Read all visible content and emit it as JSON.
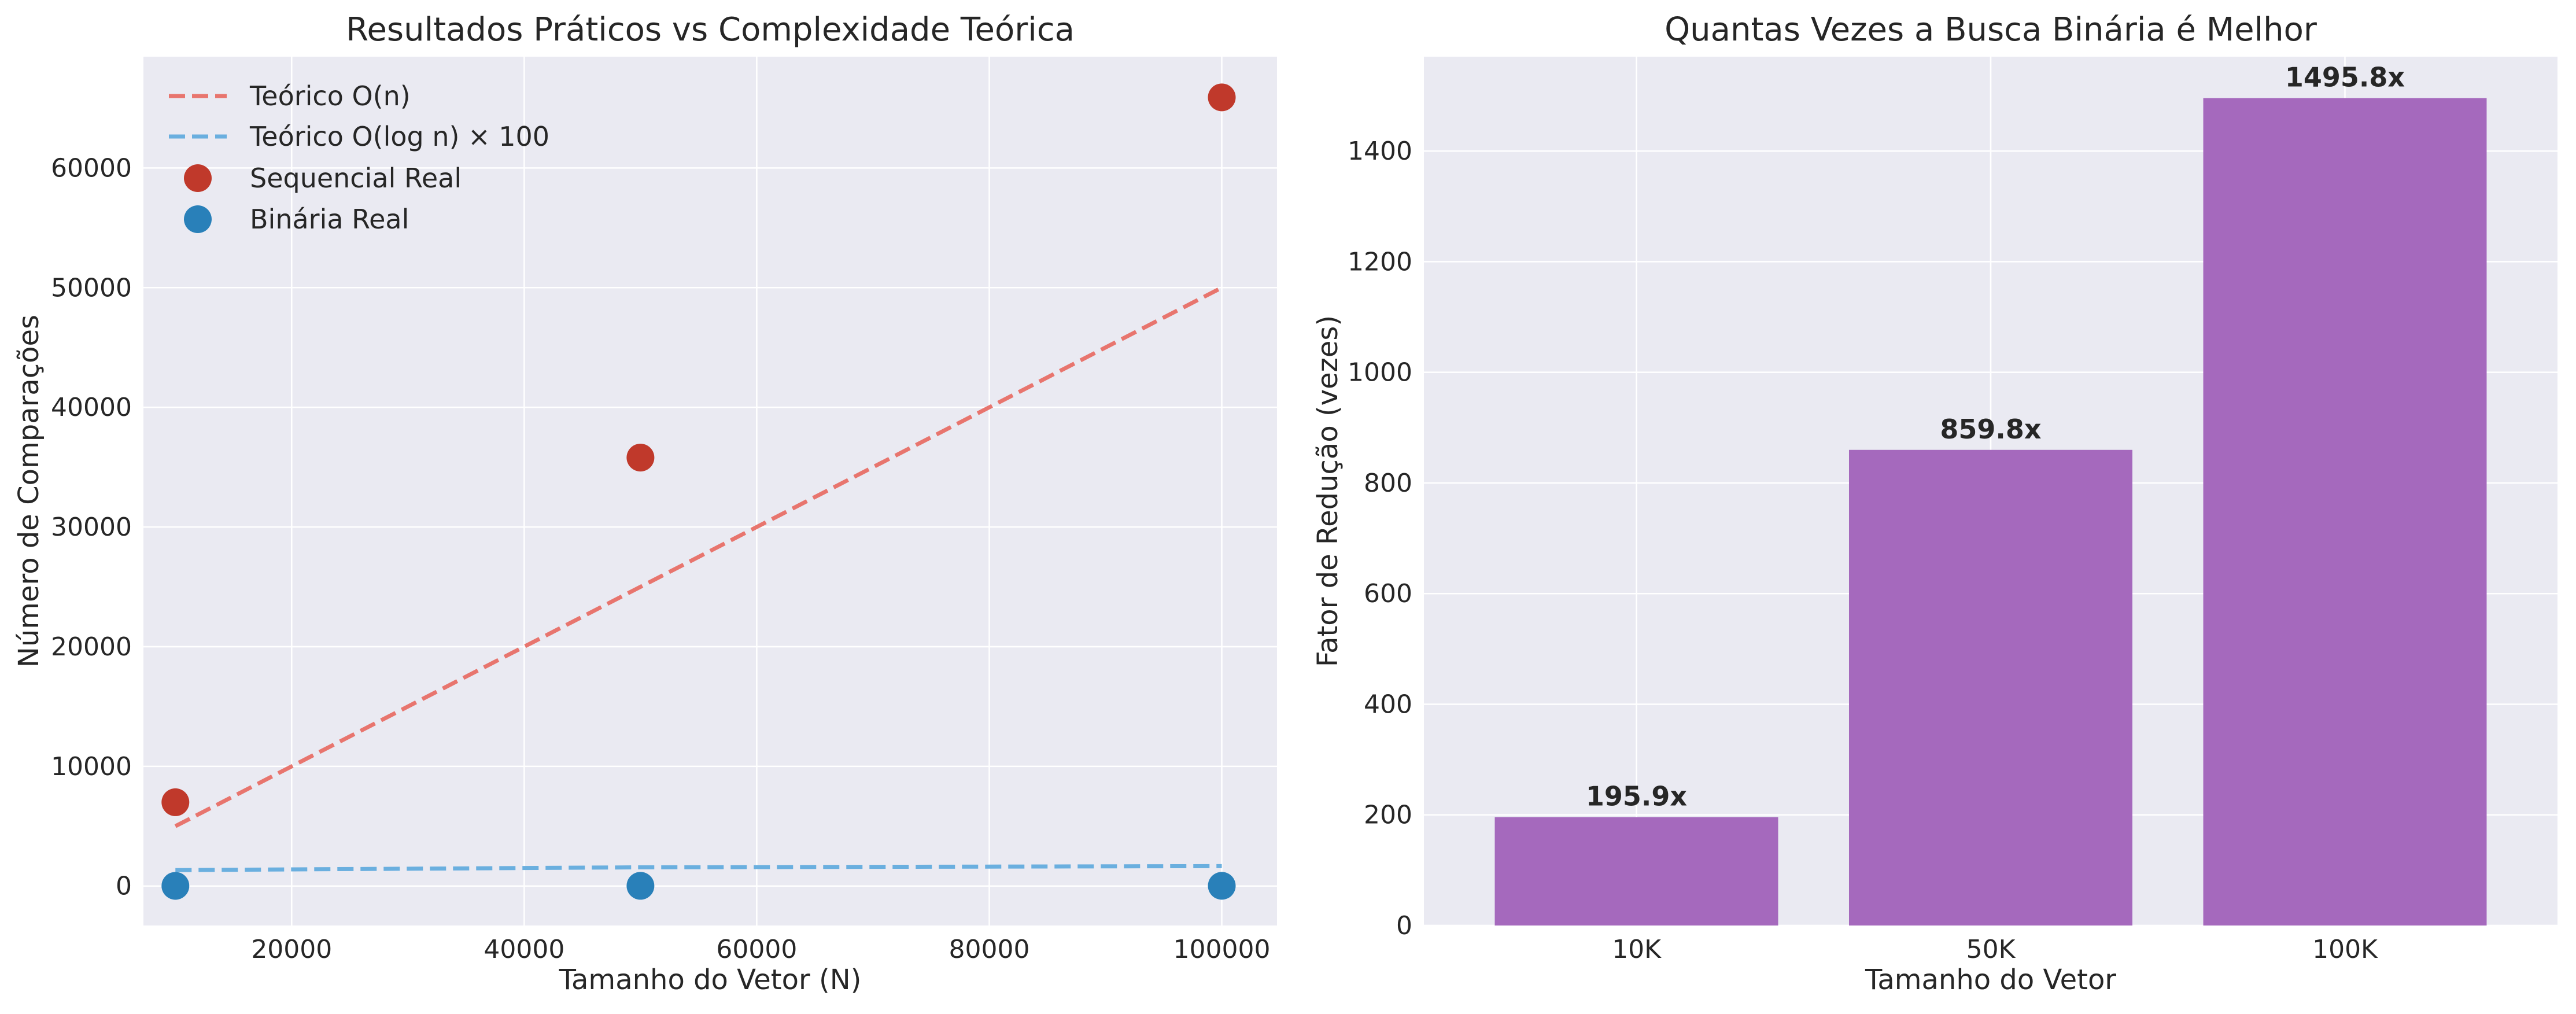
{
  "chart_data": [
    {
      "type": "scatter",
      "title": "Resultados Práticos vs Complexidade Teórica",
      "xlabel": "Tamanho do Vetor (N)",
      "ylabel": "Número de Comparações",
      "xlim": [
        7250,
        104750
      ],
      "ylim": [
        -3300,
        69300
      ],
      "xticks": [
        20000,
        40000,
        60000,
        80000,
        100000
      ],
      "yticks": [
        0,
        10000,
        20000,
        30000,
        40000,
        50000,
        60000
      ],
      "grid": true,
      "legend_position": "upper-left",
      "series": [
        {
          "name": "Teórico O(n)",
          "kind": "dashed-line",
          "color": "#e8756e",
          "x": [
            10000,
            50000,
            100000
          ],
          "y": [
            5000,
            25000,
            50000
          ]
        },
        {
          "name": "Teórico O(log n) × 100",
          "kind": "dashed-line",
          "color": "#6aafdf",
          "x": [
            10000,
            50000,
            100000
          ],
          "y": [
            1329,
            1561,
            1661
          ]
        },
        {
          "name": "Sequencial Real",
          "kind": "points",
          "color": "#c0392b",
          "x": [
            10000,
            50000,
            100000
          ],
          "y": [
            7000,
            35800,
            65900
          ]
        },
        {
          "name": "Binária Real",
          "kind": "points",
          "color": "#2980b9",
          "x": [
            10000,
            50000,
            100000
          ],
          "y": [
            14,
            16,
            17
          ]
        }
      ]
    },
    {
      "type": "bar",
      "title": "Quantas Vezes a Busca Binária é Melhor",
      "xlabel": "Tamanho do Vetor",
      "ylabel": "Fator de Redução (vezes)",
      "categories": [
        "10K",
        "50K",
        "100K"
      ],
      "values": [
        195.9,
        859.8,
        1495.8
      ],
      "value_labels": [
        "195.9x",
        "859.8x",
        "1495.8x"
      ],
      "ylim": [
        0,
        1570.6
      ],
      "yticks": [
        0,
        200,
        400,
        600,
        800,
        1000,
        1200,
        1400
      ],
      "bar_color": "#a569bd",
      "grid": true
    }
  ]
}
